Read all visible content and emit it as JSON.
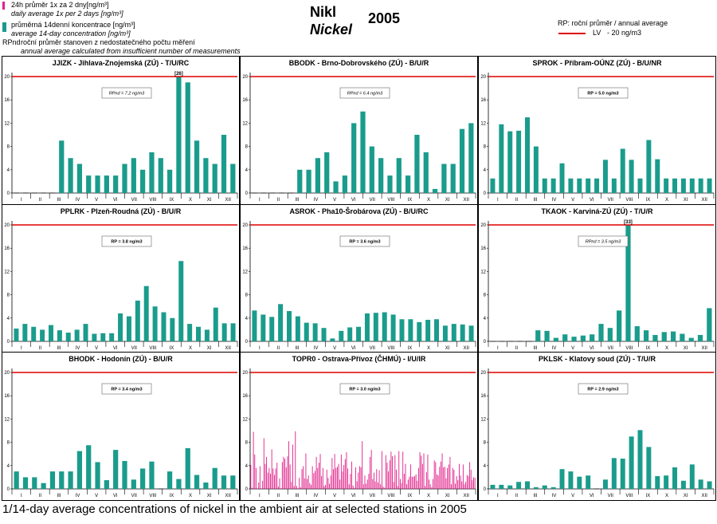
{
  "header": {
    "title_cz": "Nikl",
    "title_en": "Nickel",
    "year": "2005",
    "legend": {
      "daily_cz": "24h průměr 1x za 2 dny[ng/m³]",
      "daily_en": "daily average 1x per 2 days [ng/m³]",
      "biweekly_cz": "průměrná 14denní koncentrace [ng/m³]",
      "biweekly_en": "average 14-day concentration [ng/m³]",
      "rpnd_key": "RPnd",
      "rpnd_cz": "roční průměr stanoven z nedostatečného počtu měření",
      "rpnd_en": "annual average calculated from insufficient number of measurements",
      "rp_text": "RP: roční průměr / annual average",
      "lv_text": "LV",
      "lv_value": "- 20 ng/m3"
    },
    "colors": {
      "bar": "#1a9c8c",
      "daily": "#e0218a",
      "limit": "#dd0000"
    }
  },
  "caption": "1/14-day average concentrations of nickel in the ambient air at selected stations in 2005",
  "chart_data": [
    {
      "type": "bar",
      "title": "JJIZK - Jihlava-Znojemská (ZÚ) - T/U/RC",
      "ylim": [
        0,
        20
      ],
      "yticks": [
        0,
        4,
        8,
        12,
        16,
        20
      ],
      "limit": 20,
      "annotation": "RPnd = 7.2 ng/m3",
      "overflow_label": "[26]",
      "months": [
        "I",
        "II",
        "III",
        "IV",
        "V",
        "VI",
        "VII",
        "VIII",
        "IX",
        "X",
        "XI",
        "XII"
      ],
      "values": [
        null,
        null,
        null,
        null,
        null,
        9,
        6,
        5,
        3,
        3,
        3,
        3,
        5,
        6,
        4,
        7,
        6,
        4,
        20,
        19,
        9,
        6,
        5,
        10,
        5
      ]
    },
    {
      "type": "bar",
      "title": "BBODK - Brno-Dobrovského (ZÚ) - B/U/R",
      "ylim": [
        0,
        20
      ],
      "yticks": [
        0,
        4,
        8,
        12,
        16,
        20
      ],
      "limit": 20,
      "annotation": "RPnd = 6.4 ng/m3",
      "overflow_label": "",
      "months": [
        "I",
        "II",
        "III",
        "IV",
        "V",
        "VI",
        "VII",
        "VIII",
        "IX",
        "X",
        "XI",
        "XII"
      ],
      "values": [
        null,
        null,
        null,
        null,
        null,
        4,
        4,
        6,
        7,
        2,
        3,
        12,
        14,
        8,
        6,
        3,
        6,
        3,
        10,
        7,
        0.7,
        5,
        5,
        11,
        12
      ]
    },
    {
      "type": "bar",
      "title": "SPROK - Příbram-OÚNZ (ZÚ) - B/U/NR",
      "ylim": [
        0,
        20
      ],
      "yticks": [
        0,
        4,
        8,
        12,
        16,
        20
      ],
      "limit": 20,
      "annotation": "RP = 5.0 ng/m3",
      "overflow_label": "",
      "months": [
        "I",
        "II",
        "III",
        "IV",
        "V",
        "VI",
        "VII",
        "VIII",
        "IX",
        "X",
        "XI",
        "XII"
      ],
      "values": [
        2.5,
        11.8,
        10.6,
        10.7,
        13,
        8,
        2.5,
        2.5,
        5.1,
        2.5,
        2.5,
        2.5,
        2.5,
        5.7,
        2.5,
        7.6,
        5.7,
        2.5,
        9.1,
        5.8,
        2.5,
        2.5,
        2.5,
        2.5,
        2.5,
        2.5
      ]
    },
    {
      "type": "bar",
      "title": "PPLRK - Plzeň-Roudná (ZÚ) - B/U/R",
      "ylim": [
        0,
        20
      ],
      "yticks": [
        0,
        4,
        8,
        12,
        16,
        20
      ],
      "limit": 20,
      "annotation": "RP = 3.8 ng/m3",
      "overflow_label": "",
      "months": [
        "I",
        "II",
        "III",
        "IV",
        "V",
        "VI",
        "VII",
        "VIII",
        "IX",
        "X",
        "XI",
        "XII"
      ],
      "values": [
        2.2,
        3,
        2.5,
        2,
        2.8,
        1.9,
        1.5,
        2,
        3,
        1.3,
        1.4,
        1.4,
        4.8,
        4.3,
        7,
        9.5,
        6,
        5,
        4,
        13.8,
        3,
        2.5,
        2,
        5.8,
        3.1,
        3.1
      ]
    },
    {
      "type": "bar",
      "title": "ASROK - Pha10-Šrobárova (ZÚ) - B/U/RC",
      "ylim": [
        0,
        20
      ],
      "yticks": [
        0,
        4,
        8,
        12,
        16,
        20
      ],
      "limit": 20,
      "annotation": "RP = 3.6 ng/m3",
      "overflow_label": "",
      "months": [
        "I",
        "II",
        "III",
        "IV",
        "V",
        "VI",
        "VII",
        "VIII",
        "IX",
        "X",
        "XI",
        "XII"
      ],
      "values": [
        5.3,
        4.6,
        4.2,
        6.4,
        5.2,
        4.3,
        3.2,
        3.1,
        2.3,
        0.5,
        1.8,
        2.4,
        2.5,
        4.8,
        4.9,
        5,
        4.6,
        3.8,
        3.8,
        3.3,
        3.7,
        3.8,
        2.7,
        3,
        2.9,
        2.7
      ]
    },
    {
      "type": "bar",
      "title": "TKAOK - Karviná-ZÚ (ZÚ) - T/U/R",
      "ylim": [
        0,
        20
      ],
      "yticks": [
        0,
        4,
        8,
        12,
        16,
        20
      ],
      "limit": 20,
      "annotation": "RPnd = 3.5 ng/m3",
      "overflow_label": "[33]",
      "months": [
        "I",
        "II",
        "III",
        "IV",
        "V",
        "VI",
        "VII",
        "VIII",
        "IX",
        "X",
        "XI",
        "XII"
      ],
      "values": [
        null,
        null,
        null,
        null,
        null,
        1.9,
        1.8,
        0.6,
        1.2,
        0.8,
        1,
        1.2,
        3,
        2.3,
        5.3,
        20,
        2.6,
        1.9,
        1.1,
        1.6,
        1.7,
        1.3,
        0.6,
        1.1,
        5.7
      ]
    },
    {
      "type": "bar",
      "title": "BHODK - Hodonín (ZÚ) - B/U/R",
      "ylim": [
        0,
        20
      ],
      "yticks": [
        0,
        4,
        8,
        12,
        16,
        20
      ],
      "limit": 20,
      "annotation": "RP = 3.4 ng/m3",
      "overflow_label": "",
      "months": [
        "I",
        "II",
        "III",
        "IV",
        "V",
        "VI",
        "VII",
        "VIII",
        "IX",
        "X",
        "XI",
        "XII"
      ],
      "values": [
        3,
        2,
        2,
        1,
        3,
        3,
        3,
        6.5,
        7.5,
        4.6,
        1.5,
        6.7,
        4.8,
        1.6,
        3.5,
        4.7,
        null,
        3,
        1.7,
        7,
        2.4,
        1.1,
        3.6,
        2.3,
        2.3
      ]
    },
    {
      "type": "bar",
      "title": "TOPR0 - Ostrava-Přívoz (ČHMÚ) - I/U/IR",
      "ylim": [
        0,
        20
      ],
      "yticks": [
        0,
        4,
        8,
        12,
        16,
        20
      ],
      "limit": 20,
      "annotation": "RP = 3.0 ng/m3",
      "overflow_label": "",
      "months": [
        "I",
        "II",
        "III",
        "IV",
        "V",
        "VI",
        "VII",
        "VIII",
        "IX",
        "X",
        "XI",
        "XII"
      ],
      "series_kind": "daily",
      "values": [
        4.1,
        0.2,
        9.8,
        5.9,
        3.6,
        0.1,
        1.1,
        3.9,
        0.1,
        1.4,
        8.7,
        4.3,
        5.5,
        2.8,
        3.6,
        2.6,
        6.8,
        3.5,
        2.4,
        3.5,
        4.5,
        0.4,
        1.8,
        0.1,
        4.6,
        5.5,
        5.2,
        3.7,
        5.6,
        8.2,
        4.2,
        1.2,
        7.6,
        0.5,
        9.9,
        0.5,
        0.1,
        1.9,
        0.3,
        3.4,
        3.9,
        1.8,
        6.1,
        1.7,
        2.3,
        1.0,
        0.7,
        3.9,
        2.7,
        3.1,
        5.5,
        3.6,
        4.5,
        6.0,
        2.2,
        3.6,
        0.5,
        0.7,
        3.3,
        1.9,
        0.9,
        2.3,
        5.3,
        3.4,
        6.0,
        3.6,
        3.8,
        4.3,
        1.6,
        5.9,
        3.0,
        4.1,
        5.1,
        6.3,
        3.5,
        0.8,
        2.6,
        4.7,
        0.6,
        0.2,
        3.7,
        1.3,
        2.8,
        3.9,
        3.7,
        8.2,
        0.8,
        2.3,
        0.9,
        1.6,
        2.6,
        5.5,
        6.7,
        1.7,
        2.8,
        1.3,
        3.4,
        1.1,
        3.2,
        0.8,
        6.5,
        0.4,
        0.2,
        5.8,
        4.5,
        3.0,
        4.9,
        6.4,
        5.6,
        1.2,
        5.8,
        3.3,
        0.5,
        6.5,
        1.7,
        1.0,
        6.4,
        2.6,
        4.3,
        0.8,
        1.6,
        2.1,
        4.2,
        2.1,
        2.1,
        2.2,
        2.5,
        1.4,
        3.6,
        6.3,
        5.7,
        4.3,
        6.1,
        0.5,
        2.9,
        5.9,
        1.6,
        0.8,
        0.3,
        1.7,
        4.9,
        4.6,
        2.5,
        2.3,
        3.8,
        4.7,
        6.1,
        3.7,
        3.8,
        1.8,
        3.6,
        4.2,
        5.5,
        0.8,
        3.6,
        3.3,
        0.9,
        2.2,
        1.5,
        4.3,
        2.3,
        1.3,
        4.2,
        0.8,
        1.2,
        2.4,
        2.2,
        4.6,
        3.3,
        1.5,
        2.0,
        1.9
      ]
    },
    {
      "type": "bar",
      "title": "PKLSK - Klatovy soud (ZÚ) - T/U/R",
      "ylim": [
        0,
        20
      ],
      "yticks": [
        0,
        4,
        8,
        12,
        16,
        20
      ],
      "limit": 20,
      "annotation": "RP = 2.9 ng/m3",
      "overflow_label": "",
      "months": [
        "I",
        "II",
        "III",
        "IV",
        "V",
        "VI",
        "VII",
        "VIII",
        "IX",
        "X",
        "XI",
        "XII"
      ],
      "values": [
        0.7,
        0.7,
        0.6,
        1.2,
        1.3,
        0.3,
        0.6,
        0.3,
        3.4,
        3,
        2.1,
        2.3,
        null,
        1.6,
        5.3,
        5.2,
        9,
        10.1,
        7.2,
        2.2,
        2.3,
        3.7,
        1.4,
        4.2,
        1.6,
        1.3
      ]
    }
  ]
}
